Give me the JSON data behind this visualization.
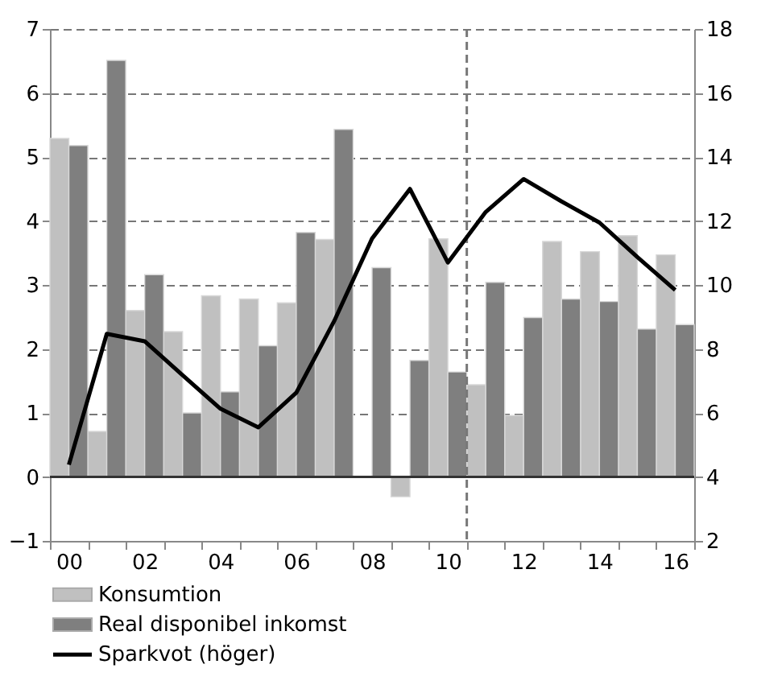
{
  "chart_data": {
    "type": "bar",
    "categories": [
      "00",
      null,
      "02",
      null,
      "04",
      null,
      "06",
      null,
      "08",
      null,
      "10",
      null,
      "12",
      null,
      "14",
      null,
      "16"
    ],
    "series": [
      {
        "name": "Konsumtion",
        "color": "#c0c0c0",
        "values": [
          5.29,
          0.71,
          2.6,
          2.27,
          2.83,
          2.78,
          2.72,
          3.71,
          null,
          -0.31,
          3.72,
          1.44,
          0.96,
          3.68,
          3.52,
          3.77,
          3.47
        ]
      },
      {
        "name": "Real disponibel inkomst",
        "color": "#7f7f7f",
        "values": [
          5.18,
          6.51,
          3.16,
          1.0,
          1.33,
          2.05,
          3.82,
          5.43,
          3.27,
          1.82,
          1.64,
          3.04,
          2.49,
          2.78,
          2.74,
          2.31,
          2.38
        ]
      },
      {
        "name": "Sparkvot (höger)",
        "color": "#000000",
        "type": "line",
        "axis": "y2",
        "values": [
          4.38,
          8.47,
          8.24,
          7.18,
          6.13,
          5.55,
          6.63,
          8.87,
          11.45,
          13.0,
          10.7,
          12.28,
          13.31,
          12.61,
          11.95,
          10.87,
          9.84
        ]
      }
    ],
    "ylim": [
      -1,
      7
    ],
    "yticks": [
      -1,
      0,
      1,
      2,
      3,
      4,
      5,
      6,
      7
    ],
    "y2lim": [
      2,
      18
    ],
    "y2ticks": [
      2,
      4,
      6,
      8,
      10,
      12,
      14,
      16,
      18
    ],
    "ref_lines": [
      {
        "axis": "y",
        "value": 0,
        "color": "#333333",
        "line_style": "solid"
      },
      {
        "axis": "x",
        "value": "10",
        "color": "#777777",
        "line_style": "dashed"
      }
    ],
    "grid": "y",
    "legend": "bottom"
  }
}
